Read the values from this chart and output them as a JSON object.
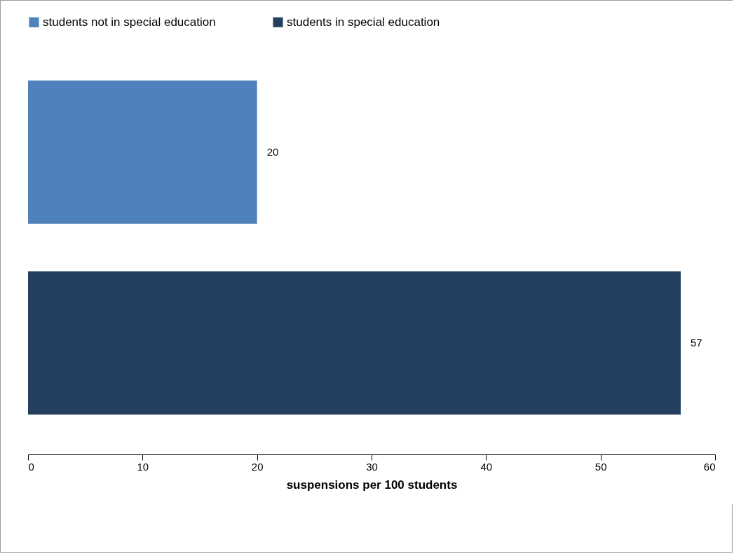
{
  "chart_data": {
    "type": "bar",
    "orientation": "horizontal",
    "categories": [
      null
    ],
    "series": [
      {
        "name": "students not in special education",
        "color": "#4f81bd",
        "values": [
          20
        ]
      },
      {
        "name": "students in special education",
        "color": "#243f60",
        "values": [
          57
        ]
      }
    ],
    "xlabel": "suspensions per 100 students",
    "xlim": [
      0,
      60
    ],
    "xticks": [
      0,
      10,
      20,
      30,
      40,
      50,
      60
    ],
    "data_labels": true,
    "legend": "top",
    "grid": false
  }
}
